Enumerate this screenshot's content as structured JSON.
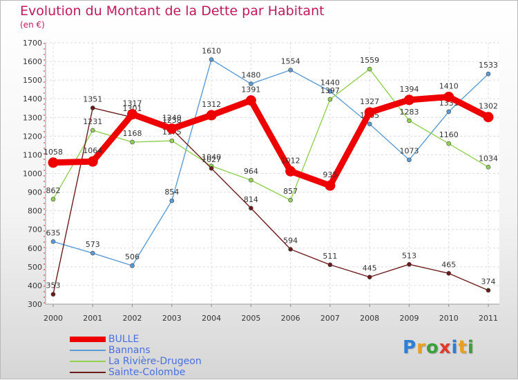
{
  "title": "Evolution du Montant de la Dette par Habitant",
  "subtitle": "(en €)",
  "logo": {
    "letters": [
      "P",
      "r",
      "o",
      "x",
      "i",
      "t",
      "i"
    ],
    "colors": [
      "#2b7fd8",
      "#e8a020",
      "#3aa03a",
      "#e23a2a",
      "#2b7fd8",
      "#e8a020",
      "#3aa03a"
    ]
  },
  "chart_data": {
    "type": "line",
    "x": [
      "2000",
      "2001",
      "2002",
      "2003",
      "2004",
      "2005",
      "2006",
      "2007",
      "2008",
      "2009",
      "2010",
      "2011"
    ],
    "ylim": [
      300,
      1700
    ],
    "yticks": [
      300,
      400,
      500,
      600,
      700,
      800,
      900,
      1000,
      1100,
      1200,
      1300,
      1400,
      1500,
      1600,
      1700
    ],
    "grid": true,
    "legend": "bottom-left",
    "series": [
      {
        "name": "Bannans",
        "color": "#5b9bd5",
        "values": [
          635,
          573,
          506,
          854,
          1610,
          1480,
          1554,
          1440,
          1265,
          1073,
          1331,
          1533
        ]
      },
      {
        "name": "La Rivière-Drugeon",
        "color": "#92d050",
        "values": [
          862,
          1231,
          1168,
          1175,
          1040,
          964,
          857,
          1397,
          1559,
          1283,
          1160,
          1034
        ]
      },
      {
        "name": "Sainte-Colombe",
        "color": "#6b1a1a",
        "values": [
          353,
          1351,
          1301,
          1238,
          1027,
          814,
          594,
          511,
          445,
          513,
          465,
          374
        ]
      },
      {
        "name": "BULLE",
        "color": "#ee0000",
        "values": [
          1058,
          1064,
          1317,
          1240,
          1312,
          1391,
          1012,
          935,
          1327,
          1394,
          1410,
          1302
        ]
      }
    ],
    "legend_order": [
      "BULLE",
      "Bannans",
      "La Rivière-Drugeon",
      "Sainte-Colombe"
    ]
  }
}
